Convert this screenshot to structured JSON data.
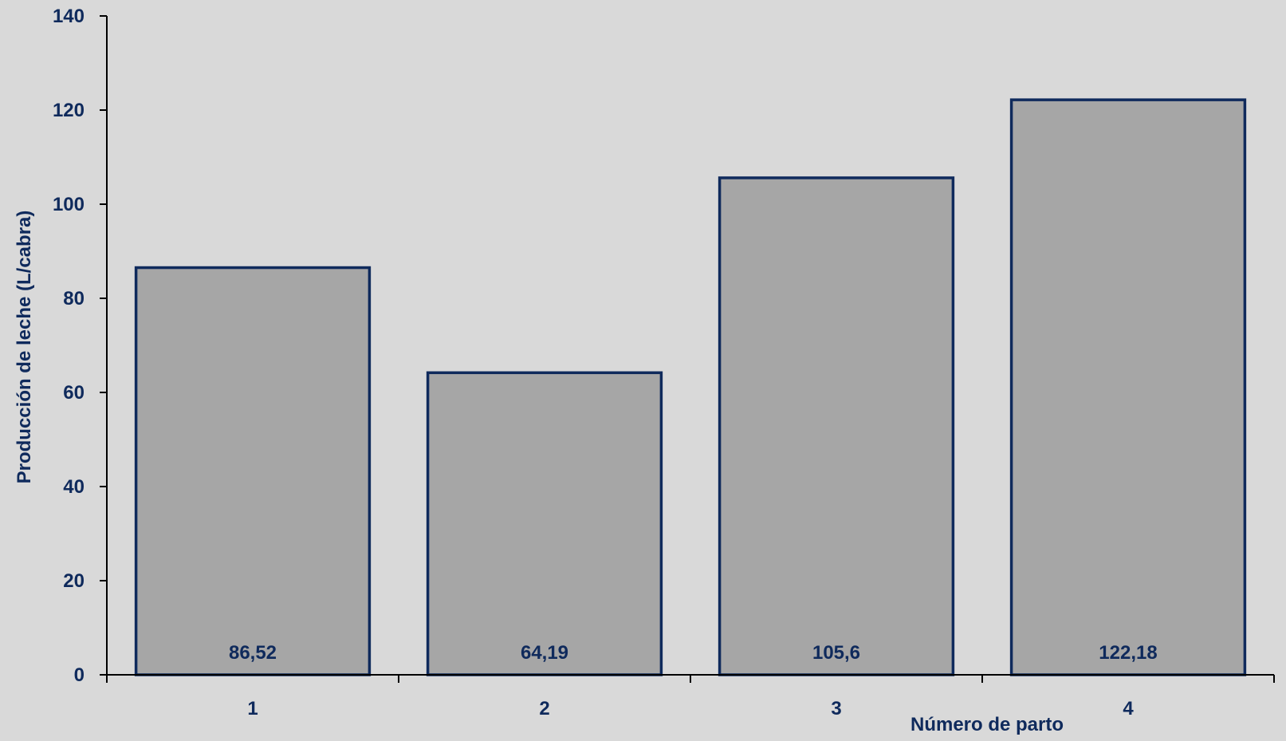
{
  "colors": {
    "background": "#d9d9d9",
    "bar_fill": "#a6a6a6",
    "bar_stroke": "#0f2a5c",
    "text": "#0f2a5c",
    "axis": "#000000"
  },
  "chart_data": {
    "type": "bar",
    "title": "",
    "xlabel": "Número de parto",
    "ylabel": "Producción de leche (L/cabra)",
    "categories": [
      "1",
      "2",
      "3",
      "4"
    ],
    "values": [
      86.52,
      64.19,
      105.6,
      122.18
    ],
    "data_labels": [
      "86,52",
      "64,19",
      "105,6",
      "122,18"
    ],
    "ylim": [
      0,
      140
    ],
    "yticks": [
      0,
      20,
      40,
      60,
      80,
      100,
      120,
      140
    ],
    "grid": false,
    "legend": "none"
  }
}
